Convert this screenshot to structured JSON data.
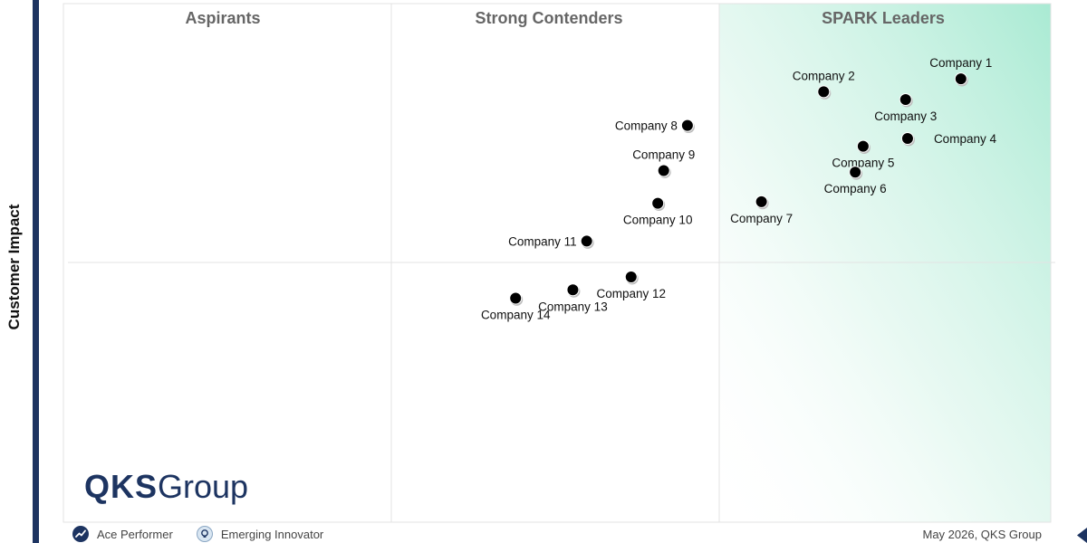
{
  "chart_data": {
    "type": "scatter",
    "xlabel": "",
    "ylabel": "Customer Impact",
    "xlim": [
      0,
      100
    ],
    "ylim": [
      0,
      100
    ],
    "grid": "quadrants",
    "quadrants": {
      "top_left": "Aspirants",
      "top_middle": "Strong Contenders",
      "top_right": "SPARK Leaders"
    },
    "points": [
      {
        "name": "Company 1",
        "x": 90.9,
        "y": 85.5,
        "label_pos": "top"
      },
      {
        "name": "Company 2",
        "x": 77.0,
        "y": 83.0,
        "label_pos": "top"
      },
      {
        "name": "Company 3",
        "x": 85.3,
        "y": 81.5,
        "label_pos": "bottom"
      },
      {
        "name": "Company 4",
        "x": 85.5,
        "y": 74.0,
        "label_pos": "right"
      },
      {
        "name": "Company 5",
        "x": 81.0,
        "y": 72.5,
        "label_pos": "bottom"
      },
      {
        "name": "Company 6",
        "x": 80.2,
        "y": 67.5,
        "label_pos": "bottom"
      },
      {
        "name": "Company 7",
        "x": 70.7,
        "y": 61.8,
        "label_pos": "bottom"
      },
      {
        "name": "Company 8",
        "x": 63.2,
        "y": 76.5,
        "label_pos": "left"
      },
      {
        "name": "Company 9",
        "x": 60.8,
        "y": 67.8,
        "label_pos": "top"
      },
      {
        "name": "Company 10",
        "x": 60.2,
        "y": 61.5,
        "label_pos": "bottom"
      },
      {
        "name": "Company 11",
        "x": 53.0,
        "y": 54.2,
        "label_pos": "left"
      },
      {
        "name": "Company 12",
        "x": 57.5,
        "y": 47.3,
        "label_pos": "bottom"
      },
      {
        "name": "Company 13",
        "x": 51.6,
        "y": 44.8,
        "label_pos": "bottom"
      },
      {
        "name": "Company 14",
        "x": 45.8,
        "y": 43.2,
        "label_pos": "bottom"
      }
    ],
    "legend": [
      {
        "name": "Ace Performer",
        "icon": "ace-performer-icon"
      },
      {
        "name": "Emerging Innovator",
        "icon": "emerging-innovator-icon"
      }
    ],
    "colors": {
      "frame": "#1d3461",
      "leaders_gradient": "#a9ead3",
      "grid": "#e3e3e3",
      "marker": "#000000"
    }
  },
  "logo": {
    "bold": "QKS",
    "light": "Group"
  },
  "footer": {
    "note": "May 2026, QKS Group"
  }
}
